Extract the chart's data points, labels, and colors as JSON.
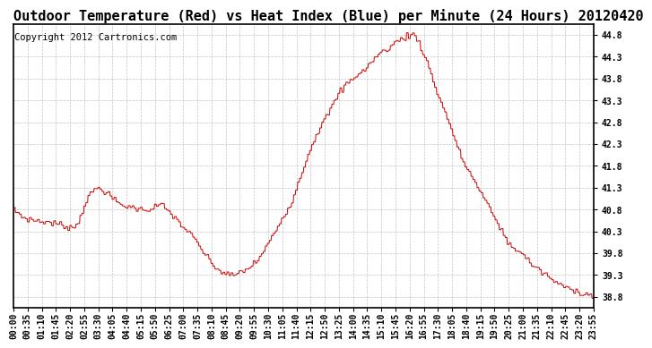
{
  "title": "Outdoor Temperature (Red) vs Heat Index (Blue) per Minute (24 Hours) 20120420",
  "copyright_text": "Copyright 2012 Cartronics.com",
  "ylabel_right_ticks": [
    44.8,
    44.3,
    43.8,
    43.3,
    42.8,
    42.3,
    41.8,
    41.3,
    40.8,
    40.3,
    39.8,
    39.3,
    38.8
  ],
  "ymin": 38.55,
  "ymax": 45.05,
  "line_color": "#cc0000",
  "bg_color": "#ffffff",
  "grid_color": "#aaaaaa",
  "title_fontsize": 11,
  "copyright_fontsize": 7.5,
  "tick_fontsize": 7,
  "x_tick_labels": [
    "00:00",
    "00:35",
    "01:10",
    "01:45",
    "02:20",
    "02:55",
    "03:30",
    "04:05",
    "04:40",
    "05:15",
    "05:50",
    "06:25",
    "07:00",
    "07:35",
    "08:10",
    "08:45",
    "09:20",
    "09:55",
    "10:30",
    "11:05",
    "11:40",
    "12:15",
    "12:50",
    "13:25",
    "14:00",
    "14:35",
    "15:10",
    "15:45",
    "16:20",
    "16:55",
    "17:30",
    "18:05",
    "18:40",
    "19:15",
    "19:50",
    "20:25",
    "21:00",
    "21:35",
    "22:10",
    "22:45",
    "23:20",
    "23:55"
  ],
  "keypoints_hours": [
    0.0,
    0.5,
    1.5,
    2.5,
    3.0,
    3.5,
    4.0,
    4.5,
    5.5,
    6.0,
    6.5,
    7.0,
    7.5,
    8.0,
    8.5,
    9.0,
    9.5,
    10.0,
    10.5,
    11.0,
    11.5,
    12.0,
    12.5,
    13.0,
    13.5,
    14.0,
    14.5,
    15.0,
    15.5,
    16.0,
    16.5,
    17.0,
    17.5,
    18.0,
    18.5,
    19.0,
    19.5,
    20.0,
    20.5,
    21.0,
    21.5,
    22.0,
    22.5,
    23.0,
    23.5,
    24.0
  ],
  "keypoints_temps": [
    40.8,
    40.6,
    40.5,
    40.4,
    41.0,
    41.3,
    41.1,
    40.9,
    40.8,
    40.9,
    40.7,
    40.4,
    40.1,
    39.7,
    39.4,
    39.3,
    39.4,
    39.6,
    40.0,
    40.5,
    41.0,
    41.8,
    42.5,
    43.0,
    43.5,
    43.8,
    44.0,
    44.3,
    44.5,
    44.7,
    44.8,
    44.3,
    43.5,
    42.8,
    42.0,
    41.5,
    41.0,
    40.5,
    40.0,
    39.8,
    39.5,
    39.3,
    39.1,
    39.0,
    38.9,
    38.8
  ]
}
